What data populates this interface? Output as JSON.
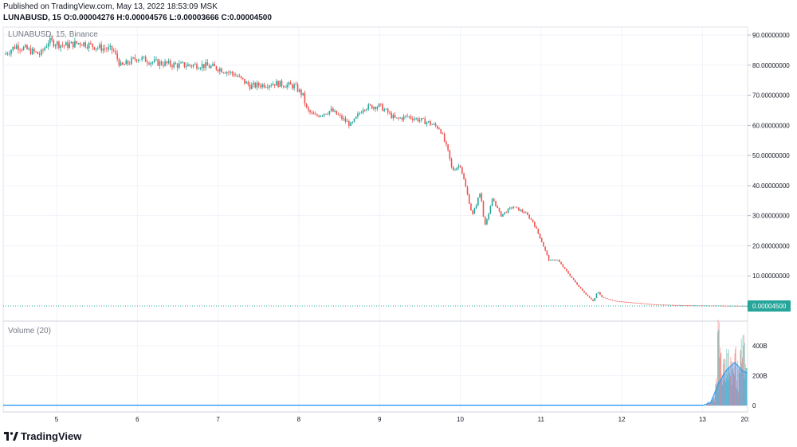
{
  "header": {
    "published": "Published on TradingView.com, May 13, 2022 18:53:09 MSK",
    "symbol": "LUNABUSD, 15",
    "ohlc": "O:0.00004276 H:0.00004576 L:0.00003666 C:0.00004500"
  },
  "pane_label": "LUNABUSD, 15, Binance",
  "volume_label": "Volume (20)",
  "brand": "TradingView",
  "colors": {
    "up": "#26a69a",
    "down": "#ef5350",
    "price_line": "#26a69a",
    "volume_ma": "#2196f3",
    "grid": "#f0f3fa",
    "axis_text": "#131722"
  },
  "chart_data": [
    {
      "type": "candlestick",
      "symbol": "LUNABUSD",
      "interval": "15",
      "exchange": "Binance",
      "x_tick_labels": [
        "5",
        "6",
        "7",
        "8",
        "9",
        "10",
        "11",
        "12",
        "13",
        "20:"
      ],
      "y_tick_labels": [
        "90.00000000",
        "80.00000000",
        "70.00000000",
        "60.00000000",
        "50.00000000",
        "40.00000000",
        "30.00000000",
        "20.00000000",
        "10.00000000"
      ],
      "ylim": [
        0,
        90
      ],
      "last_price_label": "0.00004500",
      "close_path": [
        [
          4.35,
          83.5
        ],
        [
          4.5,
          86.5
        ],
        [
          4.65,
          85.0
        ],
        [
          4.8,
          83.5
        ],
        [
          4.9,
          88.0
        ],
        [
          5.1,
          86.5
        ],
        [
          5.3,
          87.5
        ],
        [
          5.5,
          86.0
        ],
        [
          5.7,
          85.0
        ],
        [
          5.8,
          79.5
        ],
        [
          6.0,
          82.5
        ],
        [
          6.2,
          81.0
        ],
        [
          6.5,
          80.0
        ],
        [
          6.8,
          80.0
        ],
        [
          7.0,
          79.0
        ],
        [
          7.2,
          77.0
        ],
        [
          7.4,
          73.0
        ],
        [
          7.7,
          74.0
        ],
        [
          7.95,
          73.0
        ],
        [
          8.05,
          70.0
        ],
        [
          8.1,
          65.0
        ],
        [
          8.2,
          63.0
        ],
        [
          8.4,
          65.0
        ],
        [
          8.65,
          60.0
        ],
        [
          8.8,
          66.0
        ],
        [
          9.0,
          66.5
        ],
        [
          9.2,
          62.0
        ],
        [
          9.35,
          63.0
        ],
        [
          9.6,
          61.0
        ],
        [
          9.75,
          59.0
        ],
        [
          9.85,
          51.0
        ],
        [
          9.9,
          45.0
        ],
        [
          10.0,
          47.0
        ],
        [
          10.15,
          30.0
        ],
        [
          10.25,
          38.0
        ],
        [
          10.3,
          27.0
        ],
        [
          10.35,
          30.0
        ],
        [
          10.4,
          36.0
        ],
        [
          10.5,
          30.0
        ],
        [
          10.65,
          33.0
        ],
        [
          10.8,
          31.0
        ],
        [
          10.9,
          28.0
        ],
        [
          11.0,
          22.0
        ],
        [
          11.1,
          15.0
        ],
        [
          11.2,
          15.5
        ],
        [
          11.3,
          12.0
        ],
        [
          11.45,
          7.0
        ],
        [
          11.55,
          4.0
        ],
        [
          11.65,
          1.5
        ],
        [
          11.7,
          5.0
        ],
        [
          11.75,
          3.0
        ],
        [
          11.9,
          1.7
        ],
        [
          12.1,
          1.2
        ],
        [
          12.4,
          0.5
        ],
        [
          12.8,
          0.2
        ],
        [
          13.5,
          0.02
        ],
        [
          13.55,
          4.5e-05
        ]
      ],
      "series": [
        {
          "name": "LUNABUSD"
        }
      ]
    },
    {
      "type": "bar",
      "title": "Volume (20)",
      "y_tick_labels": [
        "400B",
        "200B",
        "0"
      ],
      "ylim": [
        0,
        500
      ],
      "volume_path": [
        [
          4.35,
          0.1
        ],
        [
          13.0,
          0.5
        ],
        [
          13.1,
          30
        ],
        [
          13.15,
          60
        ],
        [
          13.2,
          520
        ],
        [
          13.25,
          300
        ],
        [
          13.3,
          420
        ],
        [
          13.35,
          260
        ],
        [
          13.4,
          380
        ],
        [
          13.45,
          200
        ],
        [
          13.5,
          480
        ],
        [
          13.55,
          240
        ]
      ],
      "ma_path": [
        [
          4.35,
          0.1
        ],
        [
          13.0,
          0.5
        ],
        [
          13.1,
          20
        ],
        [
          13.2,
          150
        ],
        [
          13.3,
          240
        ],
        [
          13.4,
          290
        ],
        [
          13.45,
          260
        ],
        [
          13.5,
          230
        ],
        [
          13.55,
          220
        ]
      ]
    }
  ]
}
